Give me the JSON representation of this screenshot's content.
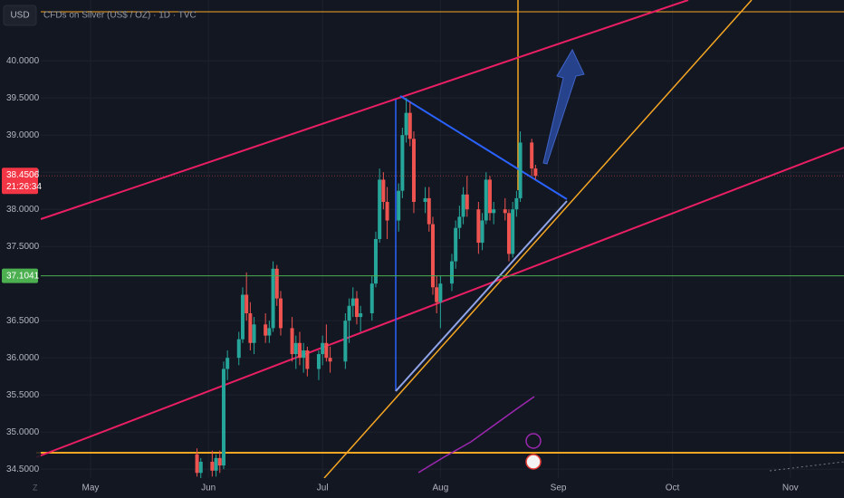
{
  "chart_data": {
    "type": "candlestick",
    "title": "CFDs on Silver (US$ / OZ) · 1D · TVC",
    "currency": "USD",
    "x": [
      28,
      29,
      32,
      33,
      34,
      35,
      36,
      39,
      40,
      41,
      42,
      43,
      46,
      47,
      48,
      49,
      50,
      53,
      54,
      55,
      56,
      57,
      60,
      61,
      62,
      63,
      67,
      68,
      69,
      70,
      71,
      74,
      75,
      76,
      77,
      78,
      81,
      82,
      83,
      84,
      85,
      88,
      89,
      90,
      91,
      92,
      95,
      96,
      97,
      98,
      99,
      102,
      103,
      104,
      105,
      106,
      109,
      110,
      111,
      112,
      113,
      116,
      117
    ],
    "open": [
      34.7,
      34.45,
      34.6,
      34.48,
      34.65,
      34.55,
      35.85,
      36.0,
      36.25,
      36.85,
      36.6,
      36.2,
      36.45,
      36.3,
      36.4,
      37.2,
      36.8,
      36.4,
      36.05,
      36.2,
      36.0,
      36.1,
      35.85,
      36.05,
      36.2,
      36.0,
      35.95,
      36.5,
      36.7,
      36.8,
      36.55,
      36.6,
      37.0,
      37.6,
      38.4,
      38.1,
      37.85,
      38.25,
      39.0,
      39.3,
      38.95,
      38.1,
      38.15,
      37.8,
      36.95,
      36.75,
      37.0,
      37.3,
      37.75,
      37.9,
      38.2,
      38.0,
      37.55,
      37.85,
      38.4,
      37.95,
      38.0,
      37.95,
      37.4,
      38.0,
      38.15,
      38.9,
      38.55
    ],
    "high": [
      34.78,
      34.65,
      34.75,
      34.7,
      34.75,
      35.95,
      36.1,
      36.35,
      36.95,
      37.15,
      36.75,
      36.55,
      36.6,
      36.5,
      37.3,
      37.25,
      36.9,
      36.55,
      36.3,
      36.35,
      36.2,
      36.15,
      36.1,
      36.3,
      36.45,
      36.15,
      36.6,
      36.8,
      36.95,
      36.9,
      36.7,
      37.1,
      37.7,
      38.55,
      38.5,
      38.3,
      38.35,
      39.1,
      39.5,
      39.45,
      39.05,
      38.3,
      38.3,
      37.9,
      37.1,
      37.1,
      37.4,
      37.85,
      38.05,
      38.3,
      38.45,
      38.1,
      37.95,
      38.5,
      38.45,
      38.1,
      38.15,
      38.0,
      38.1,
      38.25,
      39.05,
      38.95,
      38.6
    ],
    "low": [
      34.4,
      34.38,
      34.4,
      34.4,
      34.45,
      34.5,
      35.7,
      35.9,
      36.2,
      36.5,
      36.1,
      36.05,
      36.2,
      36.2,
      36.35,
      36.7,
      36.3,
      35.95,
      35.85,
      35.9,
      35.8,
      35.75,
      35.7,
      35.9,
      35.95,
      35.8,
      35.85,
      36.2,
      36.55,
      36.45,
      36.35,
      36.5,
      36.95,
      37.55,
      38.0,
      37.6,
      37.7,
      38.15,
      38.9,
      38.85,
      37.95,
      37.95,
      37.7,
      36.85,
      36.6,
      36.4,
      36.9,
      37.2,
      37.6,
      37.8,
      37.9,
      37.4,
      37.45,
      37.8,
      37.85,
      37.8,
      37.85,
      37.3,
      37.35,
      37.9,
      38.1,
      38.45,
      38.4
    ],
    "close": [
      34.45,
      34.6,
      34.48,
      34.65,
      34.55,
      35.85,
      36.0,
      36.25,
      36.85,
      36.6,
      36.2,
      36.45,
      36.3,
      36.4,
      37.2,
      36.8,
      36.4,
      36.05,
      36.2,
      36.0,
      36.1,
      35.85,
      36.05,
      36.2,
      36.0,
      35.95,
      36.5,
      36.7,
      36.8,
      36.55,
      36.6,
      37.0,
      37.6,
      38.4,
      38.1,
      37.85,
      38.25,
      39.0,
      39.3,
      38.95,
      38.1,
      38.15,
      37.8,
      36.95,
      36.75,
      37.0,
      37.3,
      37.75,
      37.9,
      38.2,
      38.0,
      37.55,
      37.85,
      38.4,
      37.95,
      38.0,
      37.95,
      37.4,
      38.0,
      38.15,
      38.9,
      38.55,
      38.45
    ],
    "up_color": "#26a69a",
    "down_color": "#ef5350",
    "xlim": [
      -23.8,
      198.1
    ],
    "xticks": [
      {
        "value": 0,
        "label": "May"
      },
      {
        "value": 31,
        "label": "Jun"
      },
      {
        "value": 61,
        "label": "Jul"
      },
      {
        "value": 92,
        "label": "Aug"
      },
      {
        "value": 123,
        "label": "Sep"
      },
      {
        "value": 153,
        "label": "Oct"
      },
      {
        "value": 184,
        "label": "Nov"
      }
    ],
    "ylim": [
      34.38,
      40.82
    ],
    "yticks": [
      {
        "value": 34.5,
        "label": "34.5000"
      },
      {
        "value": 35,
        "label": "35.0000"
      },
      {
        "value": 35.5,
        "label": "35.5000"
      },
      {
        "value": 36,
        "label": "36.0000"
      },
      {
        "value": 36.5,
        "label": "36.5000"
      },
      {
        "value": 37.5,
        "label": "37.5000"
      },
      {
        "value": 38,
        "label": "38.0000"
      },
      {
        "value": 38.5,
        "label": "38.5000"
      },
      {
        "value": 39,
        "label": "39.0000"
      },
      {
        "value": 39.5,
        "label": "39.5000"
      },
      {
        "value": 40,
        "label": "40.0000"
      }
    ],
    "grid": true,
    "last_price": 38.4506,
    "countdown": "21:26:34",
    "level": 37.1041
  }
}
